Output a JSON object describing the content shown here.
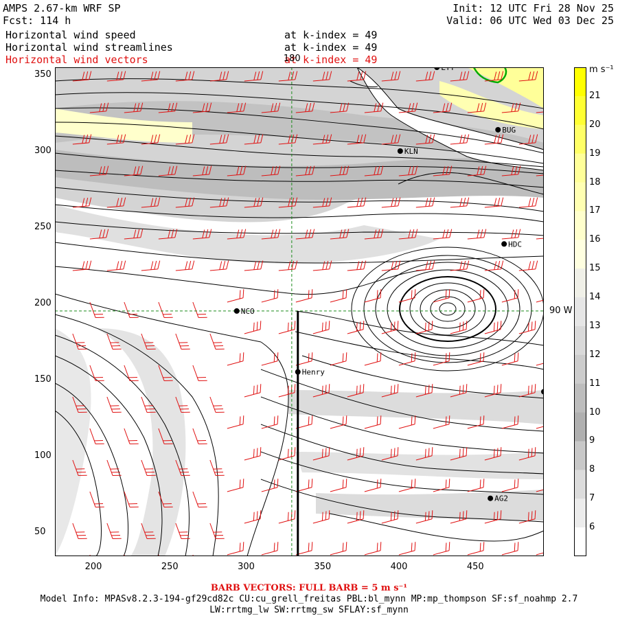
{
  "header": {
    "model": "AMPS 2.67-km WRF SP",
    "forecast": "Fcst: 114 h",
    "init": "Init: 12 UTC Fri 28 Nov 25",
    "valid": "Valid: 06 UTC Wed 03 Dec 25",
    "fields": [
      {
        "name": "Horizontal wind speed",
        "level": "at k-index = 49",
        "color": "#000000"
      },
      {
        "name": "Horizontal wind streamlines",
        "level": "at k-index = 49",
        "color": "#000000"
      },
      {
        "name": "Horizontal wind vectors",
        "level": "at k-index = 49",
        "color": "#e01010"
      }
    ]
  },
  "map": {
    "x_ticks": [
      200,
      250,
      300,
      350,
      400,
      450
    ],
    "y_ticks": [
      50,
      100,
      150,
      200,
      250,
      300,
      350
    ],
    "x_range": [
      175,
      495
    ],
    "y_range": [
      34,
      355
    ],
    "meridian_label": "180",
    "parallel_label": "90 W",
    "stations": [
      {
        "id": "LTT",
        "x": 425,
        "y": 355
      },
      {
        "id": "BUG",
        "x": 465,
        "y": 314
      },
      {
        "id": "KLN",
        "x": 401,
        "y": 300
      },
      {
        "id": "HDC",
        "x": 469,
        "y": 239
      },
      {
        "id": "NCO",
        "x": 294,
        "y": 195
      },
      {
        "id": "Henry",
        "x": 334,
        "y": 155
      },
      {
        "id": "AG2",
        "x": 460,
        "y": 72
      },
      {
        "id": "",
        "x": 495,
        "y": 142
      }
    ],
    "vertical_line_x": 334,
    "colors": {
      "barb": "#e01010",
      "coast": "#00aa00",
      "grid": "#1a8a1a"
    }
  },
  "colorbar": {
    "unit": "m s⁻¹",
    "labels": [
      21,
      20,
      19,
      18,
      17,
      16,
      15,
      14,
      13,
      12,
      11,
      10,
      9,
      8,
      7,
      6
    ],
    "colors": [
      "#ffff00",
      "#ffff33",
      "#ffff66",
      "#ffff99",
      "#ffffb2",
      "#ffffcc",
      "#ffffe0",
      "#f0f0e8",
      "#e6e6e6",
      "#d9d9d9",
      "#cccccc",
      "#bdbdbd",
      "#b0b0b0",
      "#c8c8c8",
      "#dcdcdc",
      "#ececec",
      "#ffffff"
    ]
  },
  "footer": {
    "barb": "BARB VECTORS: FULL BARB = 5 m s⁻¹",
    "model_info": "Model Info: MPASv8.2.3-194-gf29cd82c CU:cu_grell_freitas PBL:bl_mynn MP:mp_thompson SF:sf_noahmp 2.7",
    "radiation": "LW:rrtmg_lw SW:rrtmg_sw SFLAY:sf_mynn"
  }
}
